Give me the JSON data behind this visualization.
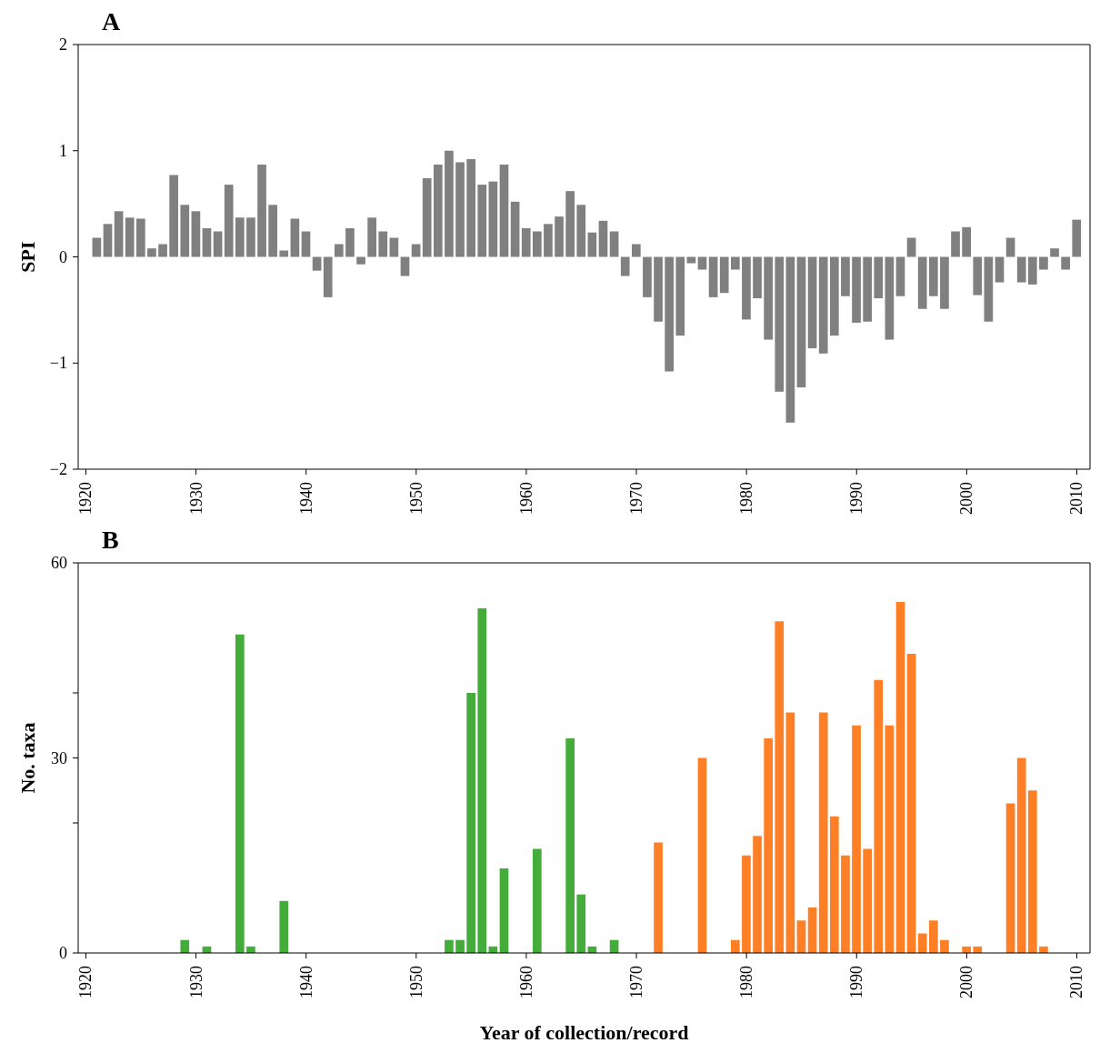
{
  "chart_data": [
    {
      "type": "bar",
      "title": "A",
      "ylabel": "SPI",
      "x": [
        1921,
        1922,
        1923,
        1924,
        1925,
        1926,
        1927,
        1928,
        1929,
        1930,
        1931,
        1932,
        1933,
        1934,
        1935,
        1936,
        1937,
        1938,
        1939,
        1940,
        1941,
        1942,
        1943,
        1944,
        1945,
        1946,
        1947,
        1948,
        1949,
        1950,
        1951,
        1952,
        1953,
        1954,
        1955,
        1956,
        1957,
        1958,
        1959,
        1960,
        1961,
        1962,
        1963,
        1964,
        1965,
        1966,
        1967,
        1968,
        1969,
        1970,
        1971,
        1972,
        1973,
        1974,
        1975,
        1976,
        1977,
        1978,
        1979,
        1980,
        1981,
        1982,
        1983,
        1984,
        1985,
        1986,
        1987,
        1988,
        1989,
        1990,
        1991,
        1992,
        1993,
        1994,
        1995,
        1996,
        1997,
        1998,
        1999,
        2000,
        2001,
        2002,
        2003,
        2004,
        2005,
        2006,
        2007,
        2008,
        2009,
        2010
      ],
      "series": [
        {
          "color": "#808080",
          "values": [
            0.18,
            0.31,
            0.43,
            0.37,
            0.36,
            0.08,
            0.12,
            0.77,
            0.49,
            0.43,
            0.27,
            0.24,
            0.68,
            0.37,
            0.37,
            0.87,
            0.49,
            0.06,
            0.36,
            0.24,
            -0.13,
            -0.38,
            0.12,
            0.27,
            -0.07,
            0.37,
            0.24,
            0.18,
            -0.18,
            0.12,
            0.74,
            0.87,
            1.0,
            0.89,
            0.92,
            0.68,
            0.71,
            0.87,
            0.52,
            0.27,
            0.24,
            0.31,
            0.38,
            0.62,
            0.49,
            0.23,
            0.34,
            0.24,
            -0.18,
            0.12,
            -0.38,
            -0.61,
            -1.08,
            -0.74,
            -0.06,
            -0.12,
            -0.38,
            -0.34,
            -0.12,
            -0.59,
            -0.39,
            -0.78,
            -1.27,
            -1.56,
            -1.23,
            -0.86,
            -0.91,
            -0.74,
            -0.37,
            -0.62,
            -0.61,
            -0.39,
            -0.78,
            -0.37,
            0.18,
            -0.49,
            -0.37,
            -0.49,
            0.24,
            0.28,
            -0.36,
            -0.61,
            -0.24,
            0.18,
            -0.24,
            -0.26,
            -0.12,
            0.08,
            -0.12,
            0.35
          ]
        }
      ],
      "xlim": [
        1919.3,
        2011.2
      ],
      "xticks": [
        1920,
        1930,
        1940,
        1950,
        1960,
        1970,
        1980,
        1990,
        2000,
        2010
      ],
      "ylim": [
        -2,
        2
      ],
      "yticks": [
        {
          "value": -2,
          "label": "−2"
        },
        {
          "value": -1,
          "label": "−1"
        },
        0,
        1,
        2
      ],
      "grid": false,
      "legend": false
    },
    {
      "type": "bar",
      "title": "B",
      "xlabel": "Year of collection/record",
      "ylabel": "No. taxa",
      "series": [
        {
          "color": "#43ac3a",
          "x": [
            1929,
            1931,
            1934,
            1935,
            1938,
            1953,
            1954,
            1955,
            1956,
            1957,
            1958,
            1961,
            1964,
            1965,
            1966,
            1968
          ],
          "values": [
            2,
            1,
            49,
            1,
            8,
            2,
            2,
            40,
            53,
            1,
            13,
            16,
            33,
            9,
            1,
            2
          ]
        },
        {
          "color": "#ff7f27",
          "x": [
            1972,
            1976,
            1979,
            1980,
            1981,
            1982,
            1983,
            1984,
            1985,
            1986,
            1987,
            1988,
            1989,
            1990,
            1991,
            1992,
            1993,
            1994,
            1995,
            1996,
            1997,
            1998,
            2000,
            2001,
            2004,
            2005,
            2006,
            2007
          ],
          "values": [
            17,
            30,
            2,
            15,
            18,
            33,
            51,
            37,
            5,
            7,
            37,
            21,
            15,
            35,
            16,
            42,
            35,
            54,
            46,
            3,
            5,
            2,
            1,
            1,
            23,
            30,
            25,
            1
          ]
        }
      ],
      "xlim": [
        1919.3,
        2011.2
      ],
      "xticks": [
        1920,
        1930,
        1940,
        1950,
        1960,
        1970,
        1980,
        1990,
        2000,
        2010
      ],
      "ylim": [
        0,
        60
      ],
      "yticks": [
        0,
        {
          "value": 20,
          "label": null
        },
        30,
        {
          "value": 40,
          "label": null
        },
        60
      ],
      "grid": false,
      "legend": false
    }
  ]
}
